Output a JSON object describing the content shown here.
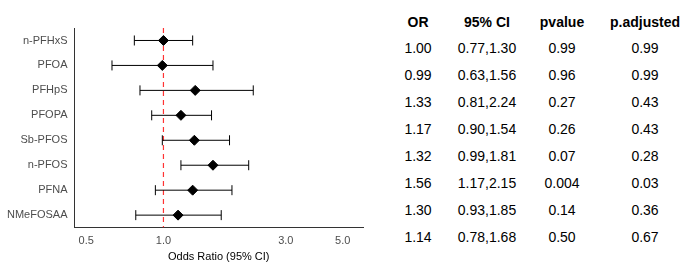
{
  "chart_data": {
    "type": "scatter",
    "categories": [
      "n-PFHxS",
      "PFOA",
      "PFHpS",
      "PFOPA",
      "Sb-PFOS",
      "n-PFOS",
      "PFNA",
      "NMeFOSAA"
    ],
    "values": [
      1.0,
      0.99,
      1.33,
      1.17,
      1.32,
      1.56,
      1.3,
      1.14
    ],
    "ci_lower": [
      0.77,
      0.63,
      0.81,
      0.9,
      0.99,
      1.17,
      0.93,
      0.78
    ],
    "ci_upper": [
      1.3,
      1.56,
      2.24,
      1.54,
      1.81,
      2.15,
      1.85,
      1.68
    ],
    "color": "#000000",
    "marker": "diamond",
    "x_label": "Odds Ratio (95% CI)",
    "log": "x",
    "xlim": [
      0.45,
      6
    ],
    "xticks": [
      0.5,
      {
        "value": 1,
        "label": "1.0"
      },
      {
        "value": 3,
        "label": "3.0"
      },
      {
        "value": 5,
        "label": "5.0"
      }
    ],
    "reference_line": 1,
    "grid": false,
    "table": {
      "columns": [
        "OR",
        "95% CI",
        "pvalue",
        "p.adjusted"
      ],
      "rows": [
        [
          "1.00",
          "0.77,1.30",
          "0.99",
          "0.99"
        ],
        [
          "0.99",
          "0.63,1.56",
          "0.96",
          "0.99"
        ],
        [
          "1.33",
          "0.81,2.24",
          "0.27",
          "0.43"
        ],
        [
          "1.17",
          "0.90,1.54",
          "0.26",
          "0.43"
        ],
        [
          "1.32",
          "0.99,1.81",
          "0.07",
          "0.28"
        ],
        [
          "1.56",
          "1.17,2.15",
          "0.004",
          "0.03"
        ],
        [
          "1.30",
          "0.93,1.85",
          "0.14",
          "0.36"
        ],
        [
          "1.14",
          "0.78,1.68",
          "0.50",
          "0.67"
        ]
      ]
    }
  }
}
